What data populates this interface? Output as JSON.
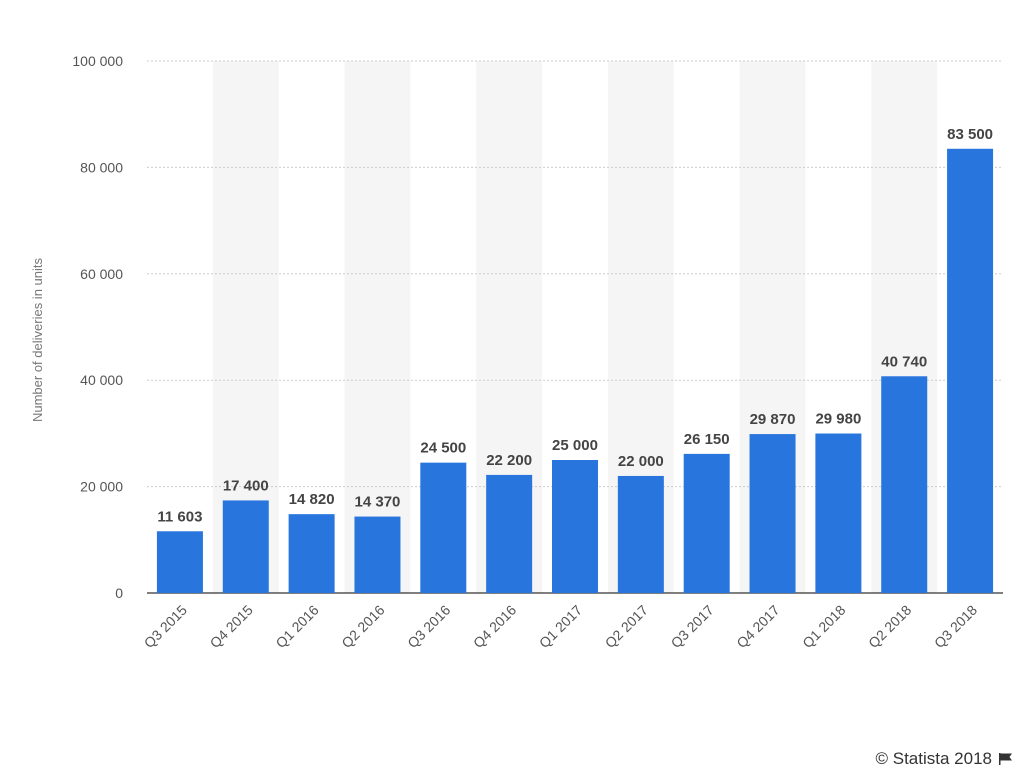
{
  "chart_data": {
    "type": "bar",
    "categories": [
      "Q3 2015",
      "Q4 2015",
      "Q1 2016",
      "Q2 2016",
      "Q3 2016",
      "Q4 2016",
      "Q1 2017",
      "Q2 2017",
      "Q3 2017",
      "Q4 2017",
      "Q1 2018",
      "Q2 2018",
      "Q3 2018"
    ],
    "values": [
      11603,
      17400,
      14820,
      14370,
      24500,
      22200,
      25000,
      22000,
      26150,
      29870,
      29980,
      40740,
      83500
    ],
    "value_labels": [
      "11 603",
      "17 400",
      "14 820",
      "14 370",
      "24 500",
      "22 200",
      "25 000",
      "22 000",
      "26 150",
      "29 870",
      "29 980",
      "40 740",
      "83 500"
    ],
    "title": "",
    "xlabel": "",
    "ylabel": "Number of deliveries in units",
    "ylim": [
      0,
      100000
    ],
    "yticks": [
      0,
      20000,
      40000,
      60000,
      80000,
      100000
    ],
    "ytick_labels": [
      "0",
      "20 000",
      "40 000",
      "60 000",
      "80 000",
      "100 000"
    ],
    "grid": true,
    "legend": "none",
    "bar_color": "#2876dd",
    "band_color": "#f5f5f5"
  },
  "credit": {
    "text": "© Statista 2018",
    "icon": "flag-icon"
  }
}
